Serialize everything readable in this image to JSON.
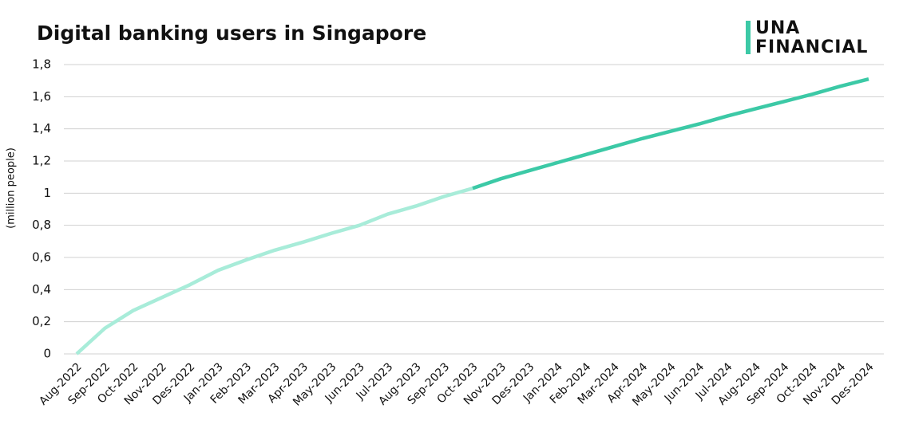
{
  "chart_data": {
    "type": "line",
    "title": "Digital banking users in Singapore",
    "logo": [
      "UNA",
      "FINANCIAL"
    ],
    "ylabel": "(million people)",
    "categories": [
      "Aug-2022",
      "Sep-2022",
      "Oct-2022",
      "Nov-2022",
      "Des-2022",
      "Jan-2023",
      "Feb-2023",
      "Mar-2023",
      "Apr-2023",
      "May-2023",
      "Jun-2023",
      "Jul-2023",
      "Aug-2023",
      "Sep-2023",
      "Oct-2023",
      "Nov-2023",
      "Des-2023",
      "Jan-2024",
      "Feb-2024",
      "Mar-2024",
      "Apr-2024",
      "May-2024",
      "Jun-2024",
      "Jul-2024",
      "Aug-2024",
      "Sep-2024",
      "Oct-2024",
      "Nov-2024",
      "Des-2024"
    ],
    "series": [
      {
        "color": "#a8ecd9",
        "values": [
          0,
          0.16,
          0.27,
          0.35,
          0.43,
          0.52,
          0.585,
          0.645,
          0.695,
          0.75,
          0.8,
          0.87,
          0.92,
          0.98,
          1.03,
          null,
          null,
          null,
          null,
          null,
          null,
          null,
          null,
          null,
          null,
          null,
          null,
          null,
          null
        ]
      },
      {
        "color": "#3cc9a6",
        "values": [
          null,
          null,
          null,
          null,
          null,
          null,
          null,
          null,
          null,
          null,
          null,
          null,
          null,
          null,
          1.03,
          1.09,
          1.14,
          1.19,
          1.24,
          1.29,
          1.34,
          1.385,
          1.43,
          1.48,
          1.525,
          1.57,
          1.615,
          1.665,
          1.71
        ]
      }
    ],
    "ylim": [
      0,
      1.8
    ],
    "yticks": [
      0,
      {
        "value": 0.2,
        "label": "0,2"
      },
      {
        "value": 0.4,
        "label": "0,4"
      },
      {
        "value": 0.6,
        "label": "0,6"
      },
      {
        "value": 0.8,
        "label": "0,8"
      },
      1,
      {
        "value": 1.2,
        "label": "1,2"
      },
      {
        "value": 1.4,
        "label": "1,4"
      },
      {
        "value": 1.6,
        "label": "1,6"
      },
      {
        "value": 1.8,
        "label": "1,8"
      }
    ],
    "grid": true
  }
}
